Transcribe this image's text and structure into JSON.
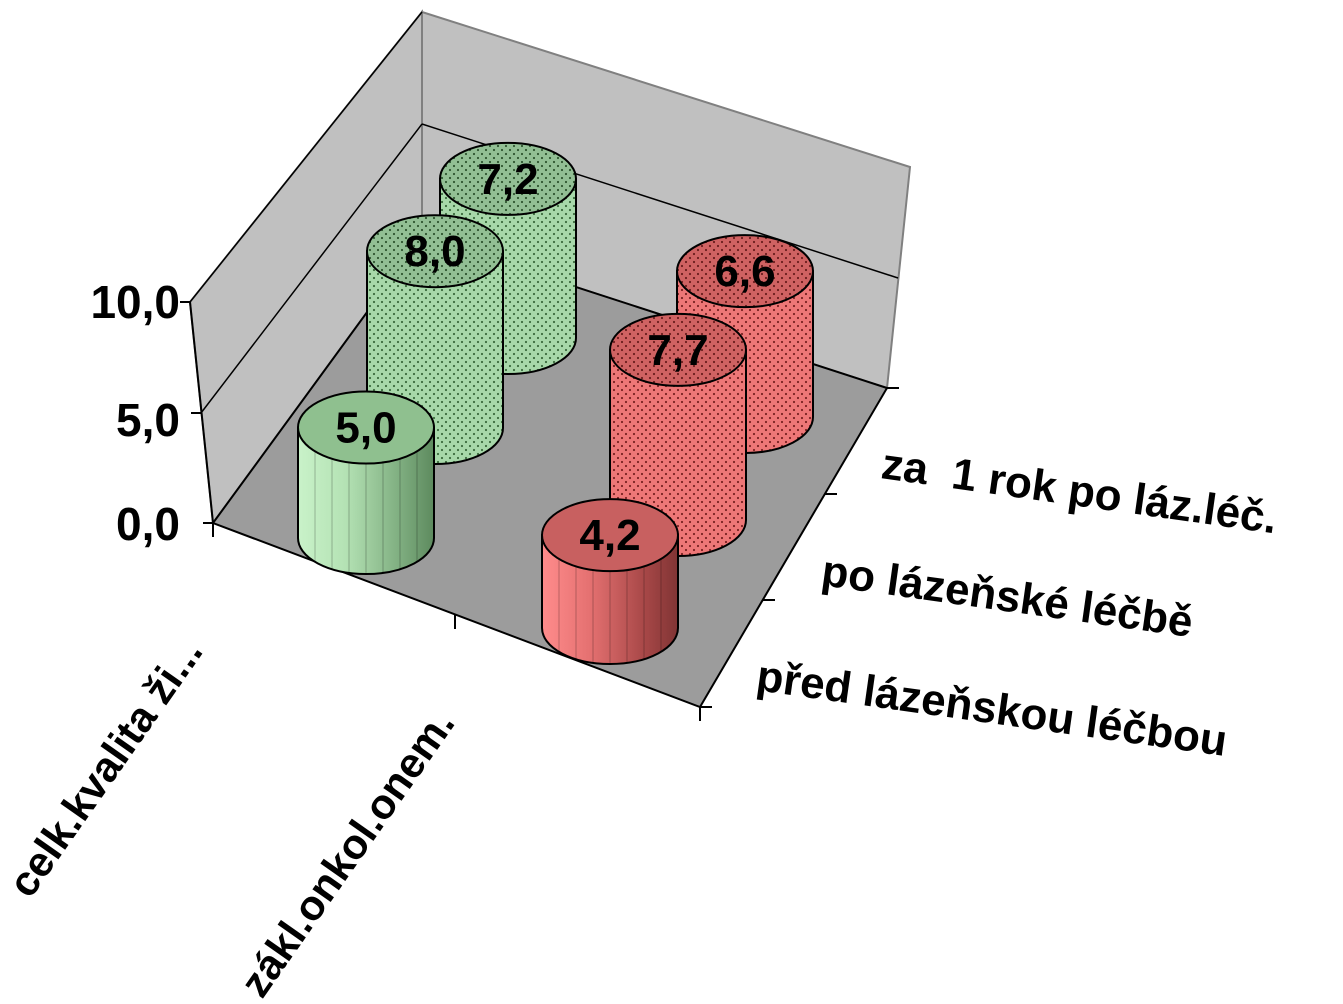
{
  "chart_data": {
    "type": "bar",
    "subtype": "3d-cylinder",
    "categories": [
      "celk.kvalita ži...",
      "zákl.onkol.onem."
    ],
    "series": [
      {
        "name": "před lázeňskou léčbou",
        "values": [
          5.0,
          4.2
        ],
        "value_labels": [
          "5,0",
          "4,2"
        ]
      },
      {
        "name": "po lázeňské léčbě",
        "values": [
          8.0,
          7.7
        ],
        "value_labels": [
          "8,0",
          "7,7"
        ]
      },
      {
        "name": "za  1 rok po láz.léč.",
        "values": [
          7.2,
          6.6
        ],
        "value_labels": [
          "7,2",
          "6,6"
        ]
      }
    ],
    "yticks": [
      "0,0",
      "5,0",
      "10,0"
    ],
    "ylim": [
      0,
      10
    ],
    "grid": true,
    "colors": {
      "category_1": "#9fd4a0",
      "category_2": "#f07070",
      "walls": "#c0c0c0",
      "floor": "#9c9c9c",
      "outline": "#000000"
    }
  }
}
